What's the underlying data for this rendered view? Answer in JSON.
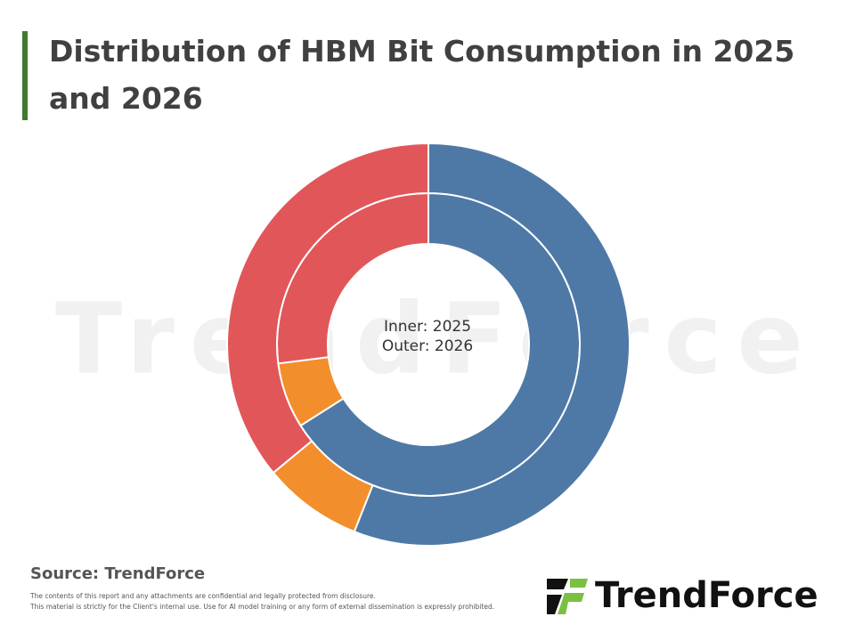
{
  "chart_data": {
    "type": "donut",
    "title": "Distribution of HBM Bit Consumption in 2025 and 2026",
    "center_labels": [
      "Inner: 2025",
      "Outer: 2026"
    ],
    "colors": [
      "#4e79a7",
      "#f28e2b",
      "#e15759"
    ],
    "series": [
      {
        "values": [
          66,
          7,
          27
        ]
      },
      {
        "values": [
          56,
          8,
          36
        ]
      }
    ]
  },
  "watermark": "TrendForce",
  "source": "Source: TrendForce",
  "disclaimer": [
    "The contents of this report and any attachments are confidential and legally protected from disclosure.",
    "This material is strictly for the Client's internal use. Use for AI model training or any form of external dissemination is expressly prohibited."
  ],
  "logo": "TrendForce"
}
